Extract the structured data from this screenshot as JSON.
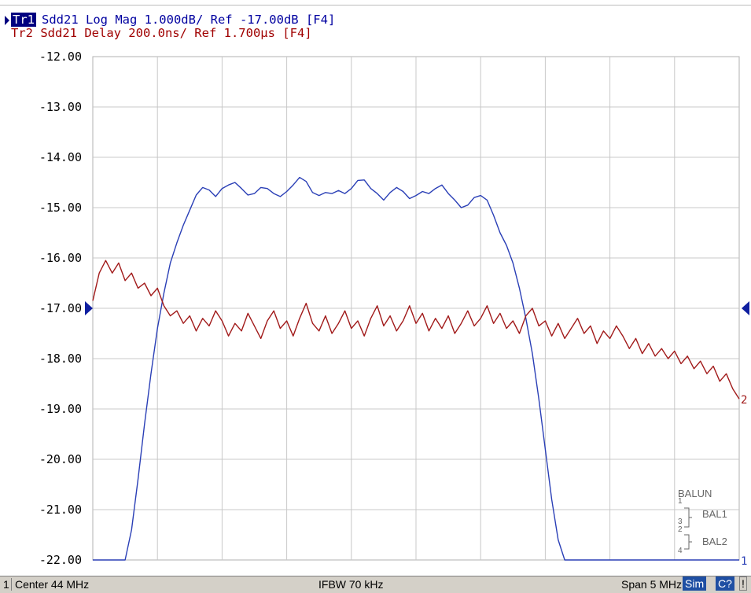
{
  "header": {
    "tr1_tag": "Tr1",
    "tr1_text": "Sdd21 Log Mag 1.000dB/ Ref -17.00dB [F4]",
    "tr2_text": "Tr2 Sdd21 Delay 200.0ns/ Ref 1.700µs [F4]"
  },
  "status_bar": {
    "channel": "1",
    "center": "Center 44 MHz",
    "ifbw": "IFBW 70 kHz",
    "span": "Span 5 MHz",
    "sim": "Sim",
    "cal": "C?",
    "excl": "!"
  },
  "balun": {
    "title": "BALUN",
    "bal1": "BAL1",
    "bal2": "BAL2",
    "ports": [
      "1",
      "3",
      "2",
      "4"
    ]
  },
  "colors": {
    "trace1": "#2a3fb6",
    "trace2": "#a11a1a",
    "grid": "#c8c8c8",
    "tr1_tag_bg": "#000080",
    "status_bg": "#d4d0c8"
  },
  "chart_data": {
    "type": "line",
    "title": "",
    "xlabel": "",
    "ylabel": "",
    "x_range_mhz": [
      41.5,
      46.5
    ],
    "ylim": [
      -22,
      -12
    ],
    "y_ticks": [
      "-12.00",
      "-13.00",
      "-14.00",
      "-15.00",
      "-16.00",
      "-17.00",
      "-18.00",
      "-19.00",
      "-20.00",
      "-21.00",
      "-22.00"
    ],
    "grid": true,
    "ref_value": -17.0,
    "series": [
      {
        "name": "Tr1",
        "end_label": "1",
        "x": [
          41.5,
          41.75,
          41.8,
          41.85,
          41.9,
          41.95,
          42.0,
          42.05,
          42.1,
          42.15,
          42.2,
          42.25,
          42.3,
          42.35,
          42.4,
          42.45,
          42.5,
          42.55,
          42.6,
          42.65,
          42.7,
          42.75,
          42.8,
          42.85,
          42.9,
          42.95,
          43.0,
          43.05,
          43.1,
          43.15,
          43.2,
          43.25,
          43.3,
          43.35,
          43.4,
          43.45,
          43.5,
          43.55,
          43.6,
          43.65,
          43.7,
          43.75,
          43.8,
          43.85,
          43.9,
          43.95,
          44.0,
          44.05,
          44.1,
          44.15,
          44.2,
          44.25,
          44.3,
          44.35,
          44.4,
          44.45,
          44.5,
          44.55,
          44.6,
          44.65,
          44.7,
          44.75,
          44.8,
          44.85,
          44.9,
          44.95,
          45.0,
          45.05,
          45.1,
          45.15,
          45.2,
          45.25,
          45.3,
          45.35,
          45.4,
          45.45,
          45.5,
          45.55,
          45.6,
          45.65,
          45.7,
          45.75,
          45.8,
          45.85,
          45.9,
          45.95,
          46.0,
          46.05,
          46.1,
          46.15,
          46.5
        ],
        "y": [
          -22.0,
          -22.0,
          -21.4,
          -20.4,
          -19.3,
          -18.3,
          -17.4,
          -16.7,
          -16.1,
          -15.7,
          -15.35,
          -15.05,
          -14.75,
          -14.6,
          -14.65,
          -14.78,
          -14.62,
          -14.55,
          -14.5,
          -14.62,
          -14.75,
          -14.72,
          -14.6,
          -14.62,
          -14.72,
          -14.78,
          -14.68,
          -14.55,
          -14.4,
          -14.48,
          -14.7,
          -14.76,
          -14.7,
          -14.72,
          -14.66,
          -14.72,
          -14.62,
          -14.46,
          -14.45,
          -14.62,
          -14.72,
          -14.85,
          -14.7,
          -14.6,
          -14.68,
          -14.82,
          -14.76,
          -14.68,
          -14.72,
          -14.62,
          -14.55,
          -14.72,
          -14.85,
          -15.0,
          -14.95,
          -14.8,
          -14.76,
          -14.85,
          -15.15,
          -15.5,
          -15.75,
          -16.1,
          -16.6,
          -17.2,
          -17.9,
          -18.8,
          -19.8,
          -20.8,
          -21.6,
          -22.0,
          -22.0,
          -22.0,
          -22.0,
          -22.0,
          -22.0,
          -22.0,
          -22.0,
          -22.0,
          -22.0,
          -22.0,
          -22.0,
          -22.0,
          -22.0,
          -22.0,
          -22.0,
          -22.0,
          -22.0,
          -22.0,
          -22.0,
          -22.0,
          -22.0
        ]
      },
      {
        "name": "Tr2",
        "end_label": "2",
        "x": [
          41.5,
          41.55,
          41.6,
          41.65,
          41.7,
          41.75,
          41.8,
          41.85,
          41.9,
          41.95,
          42.0,
          42.05,
          42.1,
          42.15,
          42.2,
          42.25,
          42.3,
          42.35,
          42.4,
          42.45,
          42.5,
          42.55,
          42.6,
          42.65,
          42.7,
          42.75,
          42.8,
          42.85,
          42.9,
          42.95,
          43.0,
          43.05,
          43.1,
          43.15,
          43.2,
          43.25,
          43.3,
          43.35,
          43.4,
          43.45,
          43.5,
          43.55,
          43.6,
          43.65,
          43.7,
          43.75,
          43.8,
          43.85,
          43.9,
          43.95,
          44.0,
          44.05,
          44.1,
          44.15,
          44.2,
          44.25,
          44.3,
          44.35,
          44.4,
          44.45,
          44.5,
          44.55,
          44.6,
          44.65,
          44.7,
          44.75,
          44.8,
          44.85,
          44.9,
          44.95,
          45.0,
          45.05,
          45.1,
          45.15,
          45.2,
          45.25,
          45.3,
          45.35,
          45.4,
          45.45,
          45.5,
          45.55,
          45.6,
          45.65,
          45.7,
          45.75,
          45.8,
          45.85,
          45.9,
          45.95,
          46.0,
          46.05,
          46.1,
          46.15,
          46.2,
          46.25,
          46.3,
          46.35,
          46.4,
          46.45,
          46.5
        ],
        "y": [
          -16.85,
          -16.3,
          -16.05,
          -16.3,
          -16.1,
          -16.45,
          -16.3,
          -16.6,
          -16.5,
          -16.75,
          -16.6,
          -16.95,
          -17.15,
          -17.05,
          -17.3,
          -17.15,
          -17.45,
          -17.2,
          -17.35,
          -17.05,
          -17.25,
          -17.55,
          -17.3,
          -17.45,
          -17.1,
          -17.35,
          -17.6,
          -17.25,
          -17.05,
          -17.4,
          -17.25,
          -17.55,
          -17.2,
          -16.9,
          -17.3,
          -17.45,
          -17.15,
          -17.5,
          -17.3,
          -17.05,
          -17.4,
          -17.25,
          -17.55,
          -17.2,
          -16.95,
          -17.35,
          -17.15,
          -17.45,
          -17.25,
          -16.95,
          -17.3,
          -17.1,
          -17.45,
          -17.2,
          -17.4,
          -17.15,
          -17.5,
          -17.3,
          -17.05,
          -17.35,
          -17.2,
          -16.95,
          -17.3,
          -17.1,
          -17.4,
          -17.25,
          -17.5,
          -17.15,
          -17.0,
          -17.35,
          -17.25,
          -17.55,
          -17.3,
          -17.6,
          -17.4,
          -17.2,
          -17.5,
          -17.35,
          -17.7,
          -17.45,
          -17.6,
          -17.35,
          -17.55,
          -17.8,
          -17.6,
          -17.9,
          -17.7,
          -17.95,
          -17.8,
          -18.0,
          -17.85,
          -18.1,
          -17.95,
          -18.2,
          -18.05,
          -18.3,
          -18.15,
          -18.45,
          -18.3,
          -18.6,
          -18.8
        ]
      }
    ]
  }
}
